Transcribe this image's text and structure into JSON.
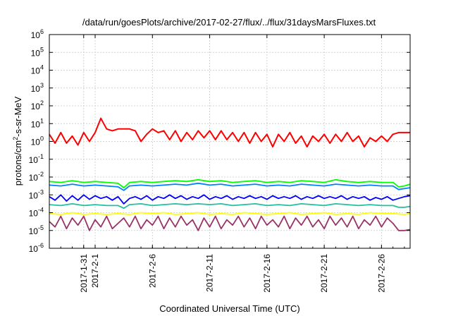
{
  "chart_data": {
    "type": "line",
    "title": "/data/run/goesPlots/archive/2017-02-27/flux/../flux/31daysMarsFluxes.txt",
    "xlabel": "Coordinated Universal Time (UTC)",
    "ylabel": "protons/cm²-s-sr-MeV",
    "ylabel_parts": {
      "base": "protons/cm",
      "sup": "2",
      "rest": "-s-sr-MeV"
    },
    "yscale": "log",
    "ylim_exp": [
      -6,
      6
    ],
    "ytick_exponents": [
      -6,
      -5,
      -4,
      -3,
      -2,
      -1,
      0,
      1,
      2,
      3,
      4,
      5,
      6
    ],
    "ytick_base": "10",
    "x_start": "2017-01-28",
    "x_end": "2017-02-28",
    "x_start_day": 28.0,
    "x_end_day": 59.5,
    "xtick_days": [
      31,
      32,
      37,
      42,
      47,
      52,
      57
    ],
    "xtick_labels": [
      "2017-1-31",
      "2017-2-1",
      "2017-2-6",
      "2017-2-11",
      "2017-2-16",
      "2017-2-21",
      "2017-2-26"
    ],
    "grid": true,
    "legend": "none",
    "series": [
      {
        "color": "#ff0000",
        "day": [
          28.0,
          28.5,
          29.0,
          29.5,
          30.0,
          30.5,
          31.0,
          31.5,
          32.0,
          32.5,
          33.0,
          33.5,
          34.0,
          34.5,
          35.0,
          35.5,
          36.0,
          36.5,
          37.0,
          37.5,
          38.0,
          38.5,
          39.0,
          39.5,
          40.0,
          40.5,
          41.0,
          41.5,
          42.0,
          42.5,
          43.0,
          43.5,
          44.0,
          44.5,
          45.0,
          45.5,
          46.0,
          46.5,
          47.0,
          47.5,
          48.0,
          48.5,
          49.0,
          49.5,
          50.0,
          50.5,
          51.0,
          51.5,
          52.0,
          52.5,
          53.0,
          53.5,
          54.0,
          54.5,
          55.0,
          55.5,
          56.0,
          56.5,
          57.0,
          57.5,
          58.0,
          58.5,
          59.0,
          59.5
        ],
        "log10": [
          0.4,
          -0.1,
          0.5,
          -0.1,
          0.3,
          -0.2,
          0.5,
          0.0,
          0.5,
          1.3,
          0.7,
          0.6,
          0.7,
          0.7,
          0.7,
          0.6,
          0.0,
          0.4,
          0.7,
          0.5,
          0.6,
          0.1,
          0.6,
          0.0,
          0.5,
          0.1,
          0.6,
          0.2,
          0.6,
          0.1,
          0.6,
          0.1,
          0.5,
          0.0,
          0.5,
          -0.1,
          0.5,
          0.0,
          0.4,
          -0.3,
          0.4,
          0.0,
          0.5,
          -0.1,
          0.3,
          -0.3,
          0.3,
          0.0,
          0.4,
          -0.1,
          0.4,
          0.0,
          0.5,
          0.0,
          0.3,
          -0.3,
          0.2,
          0.0,
          0.3,
          0.0,
          0.4,
          0.5,
          0.5,
          0.5
        ]
      },
      {
        "color": "#00ff00",
        "day": [
          28.0,
          29.0,
          30.0,
          31.0,
          32.0,
          33.0,
          34.0,
          34.5,
          35.0,
          36.0,
          37.0,
          38.0,
          39.0,
          40.0,
          41.0,
          42.0,
          43.0,
          44.0,
          45.0,
          46.0,
          47.0,
          48.0,
          49.0,
          50.0,
          51.0,
          52.0,
          53.0,
          54.0,
          55.0,
          56.0,
          57.0,
          58.0,
          58.5,
          59.0,
          59.5
        ],
        "log10": [
          -2.25,
          -2.3,
          -2.2,
          -2.3,
          -2.25,
          -2.3,
          -2.35,
          -2.6,
          -2.3,
          -2.25,
          -2.3,
          -2.25,
          -2.2,
          -2.25,
          -2.15,
          -2.25,
          -2.2,
          -2.3,
          -2.25,
          -2.2,
          -2.3,
          -2.25,
          -2.3,
          -2.2,
          -2.25,
          -2.3,
          -2.15,
          -2.25,
          -2.3,
          -2.25,
          -2.3,
          -2.3,
          -2.55,
          -2.5,
          -2.4
        ]
      },
      {
        "color": "#0080ff",
        "day": [
          28.0,
          29.0,
          30.0,
          31.0,
          32.0,
          33.0,
          34.0,
          34.5,
          35.0,
          36.0,
          37.0,
          38.0,
          39.0,
          40.0,
          41.0,
          42.0,
          43.0,
          44.0,
          45.0,
          46.0,
          47.0,
          48.0,
          49.0,
          50.0,
          51.0,
          52.0,
          53.0,
          54.0,
          55.0,
          56.0,
          57.0,
          58.0,
          58.5,
          59.0,
          59.5
        ],
        "log10": [
          -2.45,
          -2.5,
          -2.4,
          -2.5,
          -2.45,
          -2.5,
          -2.55,
          -2.75,
          -2.5,
          -2.45,
          -2.5,
          -2.45,
          -2.4,
          -2.45,
          -2.35,
          -2.45,
          -2.4,
          -2.5,
          -2.45,
          -2.4,
          -2.5,
          -2.45,
          -2.5,
          -2.4,
          -2.45,
          -2.5,
          -2.4,
          -2.45,
          -2.5,
          -2.45,
          -2.5,
          -2.5,
          -2.7,
          -2.65,
          -2.6
        ]
      },
      {
        "color": "#0000ff",
        "day": [
          28.0,
          28.5,
          29.0,
          29.5,
          30.0,
          30.5,
          31.0,
          31.5,
          32.0,
          32.5,
          33.0,
          33.5,
          34.0,
          34.5,
          35.0,
          35.5,
          36.0,
          36.5,
          37.0,
          37.5,
          38.0,
          38.5,
          39.0,
          39.5,
          40.0,
          40.5,
          41.0,
          41.5,
          42.0,
          42.5,
          43.0,
          43.5,
          44.0,
          44.5,
          45.0,
          45.5,
          46.0,
          46.5,
          47.0,
          47.5,
          48.0,
          48.5,
          49.0,
          49.5,
          50.0,
          50.5,
          51.0,
          51.5,
          52.0,
          52.5,
          53.0,
          53.5,
          54.0,
          54.5,
          55.0,
          55.5,
          56.0,
          56.5,
          57.0,
          57.5,
          58.0,
          58.5,
          59.0,
          59.5
        ],
        "log10": [
          -3.1,
          -3.3,
          -3.0,
          -3.35,
          -3.05,
          -3.3,
          -3.0,
          -3.25,
          -3.05,
          -3.2,
          -3.1,
          -3.3,
          -3.1,
          -3.5,
          -3.2,
          -3.1,
          -3.25,
          -3.05,
          -3.3,
          -3.1,
          -3.2,
          -3.0,
          -3.2,
          -3.05,
          -3.25,
          -3.1,
          -3.2,
          -3.0,
          -3.25,
          -3.1,
          -3.2,
          -3.05,
          -3.25,
          -3.1,
          -3.2,
          -3.05,
          -3.2,
          -3.1,
          -3.25,
          -3.05,
          -3.2,
          -3.1,
          -3.2,
          -3.05,
          -3.25,
          -3.1,
          -3.2,
          -3.05,
          -3.2,
          -3.1,
          -3.2,
          -3.05,
          -3.25,
          -3.1,
          -3.2,
          -3.1,
          -3.3,
          -3.15,
          -3.25,
          -3.1,
          -3.3,
          -3.2,
          -3.1,
          -3.05
        ]
      },
      {
        "color": "#20c0a0",
        "day": [
          28.0,
          29.0,
          30.0,
          31.0,
          32.0,
          33.0,
          34.0,
          34.5,
          35.0,
          36.0,
          37.0,
          38.0,
          39.0,
          40.0,
          41.0,
          42.0,
          43.0,
          44.0,
          45.0,
          46.0,
          47.0,
          48.0,
          49.0,
          50.0,
          51.0,
          52.0,
          53.0,
          54.0,
          55.0,
          56.0,
          57.0,
          58.0,
          58.5,
          59.0,
          59.5
        ],
        "log10": [
          -3.55,
          -3.6,
          -3.5,
          -3.6,
          -3.55,
          -3.6,
          -3.6,
          -3.75,
          -3.55,
          -3.5,
          -3.6,
          -3.55,
          -3.5,
          -3.55,
          -3.5,
          -3.55,
          -3.5,
          -3.6,
          -3.55,
          -3.5,
          -3.6,
          -3.55,
          -3.6,
          -3.5,
          -3.55,
          -3.6,
          -3.5,
          -3.55,
          -3.6,
          -3.55,
          -3.6,
          -3.6,
          -3.7,
          -3.7,
          -3.65
        ]
      },
      {
        "color": "#ffff00",
        "day": [
          28.0,
          29.0,
          30.0,
          31.0,
          32.0,
          33.0,
          34.0,
          35.0,
          36.0,
          37.0,
          38.0,
          39.0,
          40.0,
          41.0,
          42.0,
          43.0,
          44.0,
          45.0,
          46.0,
          47.0,
          48.0,
          49.0,
          50.0,
          51.0,
          52.0,
          53.0,
          54.0,
          55.0,
          56.0,
          57.0,
          58.0,
          59.0,
          59.5
        ],
        "log10": [
          -4.05,
          -4.1,
          -4.0,
          -4.1,
          -4.05,
          -4.1,
          -4.05,
          -4.1,
          -4.0,
          -4.05,
          -4.0,
          -4.1,
          -4.05,
          -4.0,
          -4.1,
          -4.05,
          -4.1,
          -4.0,
          -4.05,
          -4.1,
          -4.05,
          -4.0,
          -4.1,
          -4.05,
          -4.0,
          -4.1,
          -4.05,
          -4.1,
          -4.0,
          -4.05,
          -4.05,
          -4.1,
          -4.05
        ]
      },
      {
        "color": "#993366",
        "day": [
          28.0,
          28.5,
          29.0,
          29.5,
          30.0,
          30.5,
          31.0,
          31.5,
          32.0,
          32.5,
          33.0,
          33.5,
          34.0,
          34.5,
          35.0,
          35.5,
          36.0,
          36.5,
          37.0,
          37.5,
          38.0,
          38.5,
          39.0,
          39.5,
          40.0,
          40.5,
          41.0,
          41.5,
          42.0,
          42.5,
          43.0,
          43.5,
          44.0,
          44.5,
          45.0,
          45.5,
          46.0,
          46.5,
          47.0,
          47.5,
          48.0,
          48.5,
          49.0,
          49.5,
          50.0,
          50.5,
          51.0,
          51.5,
          52.0,
          52.5,
          53.0,
          53.5,
          54.0,
          54.5,
          55.0,
          55.5,
          56.0,
          56.5,
          57.0,
          57.5,
          58.0,
          58.5,
          59.0,
          59.5
        ],
        "log10": [
          -4.5,
          -4.8,
          -4.2,
          -4.9,
          -4.3,
          -4.7,
          -4.2,
          -5.0,
          -4.4,
          -4.8,
          -4.2,
          -4.9,
          -4.6,
          -4.3,
          -4.8,
          -4.2,
          -4.9,
          -4.4,
          -4.7,
          -4.2,
          -4.9,
          -4.3,
          -4.8,
          -4.2,
          -4.7,
          -4.4,
          -5.0,
          -4.3,
          -4.8,
          -4.2,
          -4.9,
          -4.4,
          -4.7,
          -4.2,
          -4.8,
          -4.3,
          -4.9,
          -4.2,
          -4.7,
          -4.4,
          -4.8,
          -4.2,
          -4.9,
          -4.3,
          -4.7,
          -4.2,
          -4.8,
          -4.4,
          -4.9,
          -4.2,
          -4.7,
          -4.3,
          -4.8,
          -4.2,
          -4.9,
          -4.4,
          -4.7,
          -4.2,
          -4.8,
          -4.3,
          -4.6,
          -5.0,
          -5.0,
          -4.95
        ]
      }
    ]
  }
}
